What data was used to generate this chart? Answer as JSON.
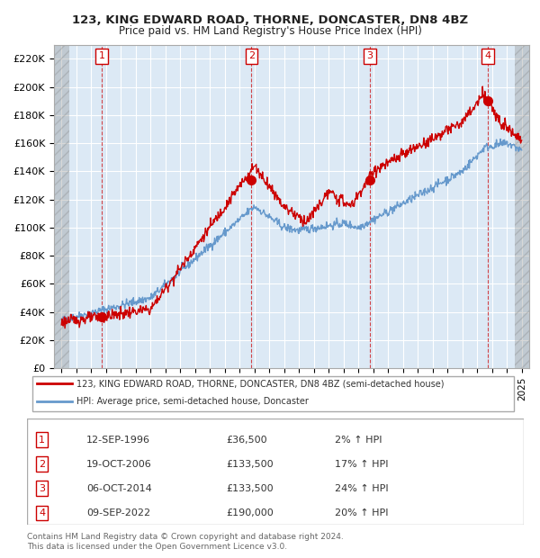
{
  "title1": "123, KING EDWARD ROAD, THORNE, DONCASTER, DN8 4BZ",
  "title2": "Price paid vs. HM Land Registry's House Price Index (HPI)",
  "bg_color": "#dce9f5",
  "plot_bg_color": "#dce9f5",
  "hpi_color": "#6699cc",
  "price_color": "#cc0000",
  "transactions": [
    {
      "date": 1996.71,
      "price": 36500,
      "label": "1"
    },
    {
      "date": 2006.8,
      "price": 133500,
      "label": "2"
    },
    {
      "date": 2014.76,
      "price": 133500,
      "label": "3"
    },
    {
      "date": 2022.69,
      "price": 190000,
      "label": "4"
    }
  ],
  "legend_entries": [
    "123, KING EDWARD ROAD, THORNE, DONCASTER, DN8 4BZ (semi-detached house)",
    "HPI: Average price, semi-detached house, Doncaster"
  ],
  "table_rows": [
    [
      "1",
      "12-SEP-1996",
      "£36,500",
      "2% ↑ HPI"
    ],
    [
      "2",
      "19-OCT-2006",
      "£133,500",
      "17% ↑ HPI"
    ],
    [
      "3",
      "06-OCT-2014",
      "£133,500",
      "24% ↑ HPI"
    ],
    [
      "4",
      "09-SEP-2022",
      "£190,000",
      "20% ↑ HPI"
    ]
  ],
  "footer": "Contains HM Land Registry data © Crown copyright and database right 2024.\nThis data is licensed under the Open Government Licence v3.0.",
  "ylim": [
    0,
    230000
  ],
  "xlim": [
    1993.5,
    2025.5
  ],
  "yticks": [
    0,
    20000,
    40000,
    60000,
    80000,
    100000,
    120000,
    140000,
    160000,
    180000,
    200000,
    220000
  ],
  "ytick_labels": [
    "£0",
    "£20K",
    "£40K",
    "£60K",
    "£80K",
    "£100K",
    "£120K",
    "£140K",
    "£160K",
    "£180K",
    "£200K",
    "£220K"
  ],
  "xticks": [
    1994,
    1995,
    1996,
    1997,
    1998,
    1999,
    2000,
    2001,
    2002,
    2003,
    2004,
    2005,
    2006,
    2007,
    2008,
    2009,
    2010,
    2011,
    2012,
    2013,
    2014,
    2015,
    2016,
    2017,
    2018,
    2019,
    2020,
    2021,
    2022,
    2023,
    2024,
    2025
  ]
}
